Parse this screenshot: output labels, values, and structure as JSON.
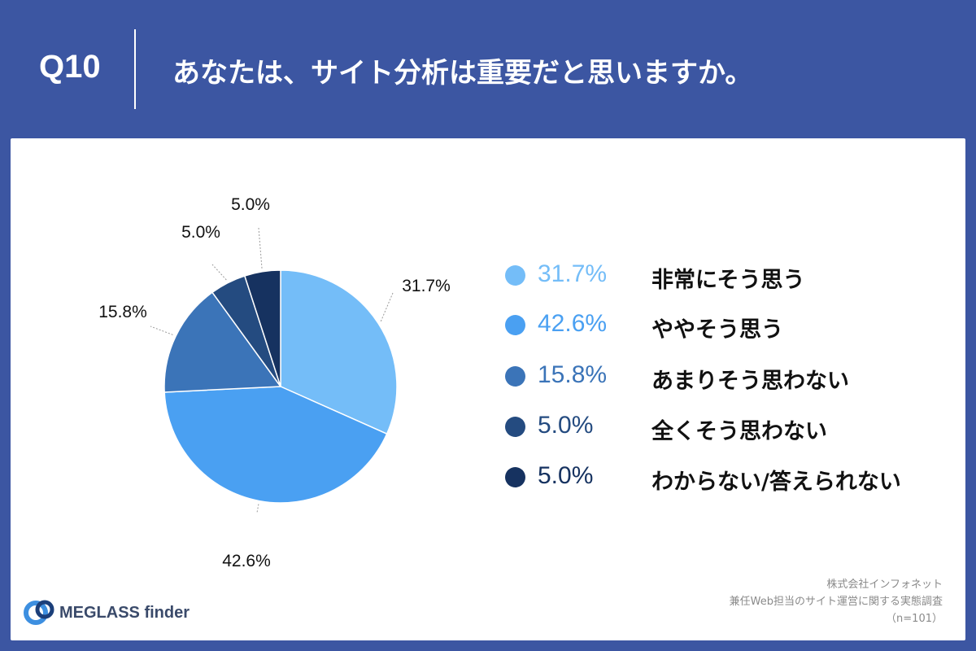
{
  "header": {
    "question_number": "Q10",
    "question_text": "あなたは、サイト分析は重要だと思いますか。"
  },
  "chart_data": {
    "type": "pie",
    "title": "",
    "slices": [
      {
        "label": "非常にそう思う",
        "value": 31.7,
        "value_label": "31.7%",
        "color": "#74bdf8"
      },
      {
        "label": "ややそう思う",
        "value": 42.6,
        "value_label": "42.6%",
        "color": "#4aa0f2"
      },
      {
        "label": "あまりそう思わない",
        "value": 15.8,
        "value_label": "15.8%",
        "color": "#3b74b8"
      },
      {
        "label": "全くそう思わない",
        "value": 5.0,
        "value_label": "5.0%",
        "color": "#244b80"
      },
      {
        "label": "わからない/答えられない",
        "value": 5.0,
        "value_label": "5.0%",
        "color": "#163260"
      }
    ],
    "start": "top, clockwise",
    "legend_position": "right"
  },
  "footer": {
    "source_line1": "株式会社インフォネット",
    "source_line2": "兼任Web担当のサイト運営に関する実態調査",
    "source_line3": "（n=101）",
    "logo_text": "MEGLASS finder",
    "logo_icon": "meglass-logo-icon"
  }
}
